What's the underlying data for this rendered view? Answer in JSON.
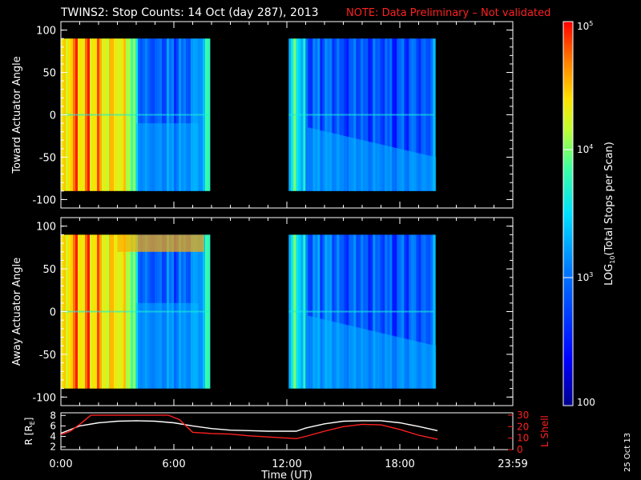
{
  "title": {
    "main": "TWINS2: Stop Counts: 14 Oct (day 287), 2013",
    "note": "NOTE: Data Preliminary – Not validated",
    "note_color": "#ff2020"
  },
  "stamp": "25 Oct 13",
  "colorbar": {
    "label": "LOG10(Total Stops per Scan)",
    "label_prefix": "LOG",
    "label_sub": "10",
    "label_suffix": "(Total Stops per Scan)",
    "ticks": [
      {
        "mant": "10",
        "exp": "5",
        "value": 100000
      },
      {
        "mant": "10",
        "exp": "4",
        "value": 10000
      },
      {
        "mant": "10",
        "exp": "3",
        "value": 1000
      },
      {
        "mant": "100",
        "exp": "",
        "value": 100
      }
    ]
  },
  "chart_data": [
    {
      "type": "heatmap",
      "name": "toward",
      "ylabel": "Toward Actuator Angle",
      "ylim": [
        -110,
        110
      ],
      "yticks": [
        "100",
        "50",
        "0",
        "-50",
        "-100"
      ],
      "ytick_values": [
        100,
        50,
        0,
        -50,
        -100
      ],
      "xlim": [
        0,
        24
      ],
      "x_unit": "hours UT",
      "color_scale": "log10",
      "color_range": [
        100,
        100000
      ],
      "data_y_range": [
        -90,
        90
      ],
      "segments": [
        {
          "start": 0.0,
          "end": 7.9
        },
        {
          "start": 12.1,
          "end": 19.8
        }
      ],
      "profile_hours": [
        0.0,
        0.3,
        0.6,
        1.0,
        2.0,
        2.8,
        3.4,
        4.0,
        5.0,
        6.0,
        7.0,
        7.5,
        7.9,
        12.1,
        12.5,
        13.0,
        14.0,
        15.0,
        16.0,
        17.0,
        18.0,
        19.0,
        19.5,
        19.8
      ],
      "profile_counts": [
        30000,
        60000,
        70000,
        65000,
        55000,
        40000,
        30000,
        1500,
        1100,
        1200,
        1400,
        3000,
        8000,
        5000,
        8000,
        1500,
        1000,
        950,
        900,
        850,
        900,
        1000,
        1200,
        3000
      ]
    },
    {
      "type": "heatmap",
      "name": "away",
      "ylabel": "Away Actuator Angle",
      "ylim": [
        -110,
        110
      ],
      "yticks": [
        "100",
        "50",
        "0",
        "-50",
        "-100"
      ],
      "ytick_values": [
        100,
        50,
        0,
        -50,
        -100
      ],
      "xlim": [
        0,
        24
      ],
      "x_unit": "hours UT",
      "color_scale": "log10",
      "color_range": [
        100,
        100000
      ],
      "data_y_range": [
        -90,
        90
      ],
      "segments": [
        {
          "start": 0.0,
          "end": 7.9
        },
        {
          "start": 12.1,
          "end": 19.8
        }
      ],
      "profile_hours": [
        0.0,
        0.3,
        0.6,
        1.0,
        2.0,
        2.8,
        3.4,
        4.0,
        5.0,
        6.0,
        7.0,
        7.5,
        7.9,
        12.1,
        12.5,
        13.0,
        14.0,
        15.0,
        16.0,
        17.0,
        18.0,
        19.0,
        19.5,
        19.8
      ],
      "profile_counts": [
        30000,
        60000,
        70000,
        65000,
        55000,
        40000,
        30000,
        1500,
        1100,
        1200,
        1400,
        3000,
        8000,
        5000,
        8000,
        1800,
        1300,
        1100,
        1000,
        950,
        1000,
        1100,
        1300,
        3000
      ]
    },
    {
      "type": "line",
      "name": "orbit",
      "xlabel": "Time (UT)",
      "xlim": [
        0,
        24
      ],
      "xticks": [
        "0:00",
        "6:00",
        "12:00",
        "18:00",
        "23:59"
      ],
      "xtick_values": [
        0,
        6,
        12,
        18,
        24
      ],
      "ylabel_left": "R [RE]",
      "ylabel_left_main": "R [R",
      "ylabel_left_sub": "E",
      "ylabel_left_close": "]",
      "ylim_left": [
        1.5,
        8.5
      ],
      "yticks_left": [
        "8",
        "6",
        "4",
        "2"
      ],
      "ytick_values_left": [
        8,
        6,
        4,
        2
      ],
      "ylabel_right": "L Shell",
      "ylim_right": [
        0,
        32
      ],
      "yticks_right": [
        "30",
        "20",
        "10",
        "0"
      ],
      "ytick_values_right": [
        30,
        20,
        10,
        0
      ],
      "series": [
        {
          "axis": "left",
          "color": "#ffffff",
          "x": [
            0.0,
            0.5,
            1.0,
            2.0,
            3.0,
            4.0,
            5.0,
            6.0,
            7.0,
            8.0,
            9.0,
            10.0,
            11.0,
            12.0,
            12.5,
            13.0,
            14.0,
            15.0,
            16.0,
            17.0,
            18.0,
            19.0,
            20.0
          ],
          "y": [
            4.6,
            5.3,
            6.0,
            6.6,
            6.9,
            7.0,
            6.9,
            6.6,
            6.0,
            5.5,
            5.2,
            5.1,
            5.0,
            5.0,
            5.0,
            5.6,
            6.4,
            6.9,
            7.0,
            7.0,
            6.6,
            5.9,
            5.1
          ]
        },
        {
          "axis": "right",
          "color": "#ff2020",
          "x": [
            0.0,
            0.5,
            1.0,
            1.6,
            5.7,
            6.3,
            7.0,
            8.0,
            9.0,
            10.0,
            11.0,
            12.0,
            12.5,
            13.0,
            14.0,
            15.0,
            16.0,
            17.0,
            18.0,
            19.0,
            20.0
          ],
          "y": [
            13,
            16,
            22,
            30,
            30,
            26,
            15,
            14,
            13.5,
            12,
            11,
            10,
            9.5,
            11.5,
            16,
            20,
            22,
            21.5,
            17.5,
            12.5,
            9
          ]
        }
      ]
    }
  ]
}
